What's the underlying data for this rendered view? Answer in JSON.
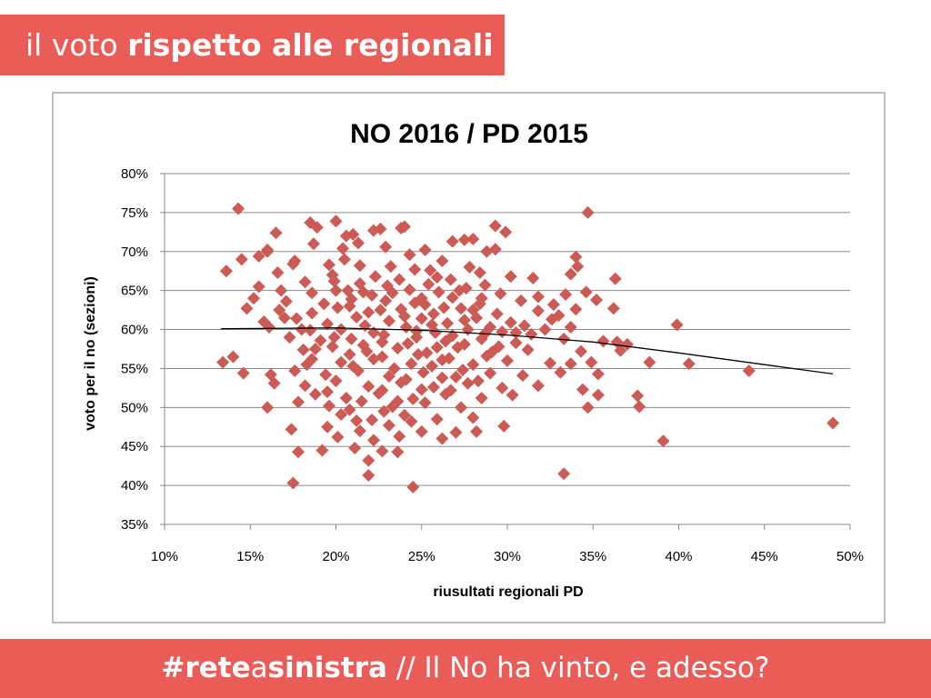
{
  "header": {
    "title_light": "il voto ",
    "title_bold": "rispetto alle regionali"
  },
  "footer": {
    "hashtag_part1": "#rete",
    "hashtag_part2": "a",
    "hashtag_part3": "sinistra",
    "tagline": " // Il No ha vinto, e adesso?"
  },
  "colors": {
    "accent": "#ea5c57",
    "marker": "#cc5a55",
    "trend": "#000000",
    "grid": "#8a8a8a"
  },
  "chart_data": {
    "type": "scatter",
    "title": "NO 2016 / PD 2015",
    "xlabel": "riusultati regionali PD",
    "ylabel": "voto per il no (sezioni)",
    "xlim": [
      0.1,
      0.5
    ],
    "ylim": [
      0.35,
      0.8
    ],
    "x_ticks": [
      0.1,
      0.15,
      0.2,
      0.25,
      0.3,
      0.35,
      0.4,
      0.45,
      0.5
    ],
    "x_tick_labels": [
      "10%",
      "15%",
      "20%",
      "25%",
      "30%",
      "35%",
      "40%",
      "45%",
      "50%"
    ],
    "y_ticks": [
      0.35,
      0.4,
      0.45,
      0.5,
      0.55,
      0.6,
      0.65,
      0.7,
      0.75,
      0.8
    ],
    "y_tick_labels": [
      "35%",
      "40%",
      "45%",
      "50%",
      "55%",
      "60%",
      "65%",
      "70%",
      "75%",
      "80%"
    ],
    "grid": "horizontal",
    "marker": "diamond",
    "trendline": {
      "type": "polynomial",
      "x": [
        0.133,
        0.2,
        0.25,
        0.3,
        0.35,
        0.4,
        0.45,
        0.49
      ],
      "y": [
        0.601,
        0.602,
        0.599,
        0.593,
        0.584,
        0.57,
        0.555,
        0.543
      ]
    },
    "points": [
      [
        0.143,
        0.755
      ],
      [
        0.347,
        0.75
      ],
      [
        0.185,
        0.737
      ],
      [
        0.2,
        0.739
      ],
      [
        0.189,
        0.731
      ],
      [
        0.222,
        0.727
      ],
      [
        0.226,
        0.729
      ],
      [
        0.238,
        0.73
      ],
      [
        0.24,
        0.732
      ],
      [
        0.293,
        0.733
      ],
      [
        0.299,
        0.725
      ],
      [
        0.165,
        0.724
      ],
      [
        0.21,
        0.722
      ],
      [
        0.275,
        0.715
      ],
      [
        0.268,
        0.713
      ],
      [
        0.28,
        0.716
      ],
      [
        0.229,
        0.706
      ],
      [
        0.252,
        0.702
      ],
      [
        0.293,
        0.703
      ],
      [
        0.187,
        0.71
      ],
      [
        0.204,
        0.704
      ],
      [
        0.213,
        0.711
      ],
      [
        0.145,
        0.69
      ],
      [
        0.16,
        0.7
      ],
      [
        0.155,
        0.694
      ],
      [
        0.176,
        0.688
      ],
      [
        0.205,
        0.69
      ],
      [
        0.243,
        0.696
      ],
      [
        0.262,
        0.688
      ],
      [
        0.288,
        0.7
      ],
      [
        0.34,
        0.693
      ],
      [
        0.136,
        0.675
      ],
      [
        0.166,
        0.673
      ],
      [
        0.175,
        0.684
      ],
      [
        0.196,
        0.683
      ],
      [
        0.214,
        0.682
      ],
      [
        0.232,
        0.681
      ],
      [
        0.255,
        0.676
      ],
      [
        0.278,
        0.68
      ],
      [
        0.341,
        0.681
      ],
      [
        0.337,
        0.671
      ],
      [
        0.363,
        0.665
      ],
      [
        0.302,
        0.668
      ],
      [
        0.315,
        0.666
      ],
      [
        0.182,
        0.661
      ],
      [
        0.199,
        0.662
      ],
      [
        0.214,
        0.659
      ],
      [
        0.237,
        0.664
      ],
      [
        0.254,
        0.658
      ],
      [
        0.267,
        0.664
      ],
      [
        0.287,
        0.657
      ],
      [
        0.168,
        0.65
      ],
      [
        0.186,
        0.647
      ],
      [
        0.207,
        0.65
      ],
      [
        0.221,
        0.644
      ],
      [
        0.243,
        0.651
      ],
      [
        0.26,
        0.648
      ],
      [
        0.276,
        0.653
      ],
      [
        0.296,
        0.646
      ],
      [
        0.318,
        0.642
      ],
      [
        0.334,
        0.645
      ],
      [
        0.346,
        0.648
      ],
      [
        0.152,
        0.64
      ],
      [
        0.171,
        0.636
      ],
      [
        0.193,
        0.633
      ],
      [
        0.209,
        0.639
      ],
      [
        0.229,
        0.637
      ],
      [
        0.246,
        0.634
      ],
      [
        0.268,
        0.641
      ],
      [
        0.284,
        0.633
      ],
      [
        0.308,
        0.637
      ],
      [
        0.327,
        0.632
      ],
      [
        0.352,
        0.638
      ],
      [
        0.148,
        0.627
      ],
      [
        0.167,
        0.625
      ],
      [
        0.186,
        0.621
      ],
      [
        0.201,
        0.628
      ],
      [
        0.219,
        0.622
      ],
      [
        0.238,
        0.626
      ],
      [
        0.257,
        0.62
      ],
      [
        0.273,
        0.627
      ],
      [
        0.294,
        0.62
      ],
      [
        0.318,
        0.624
      ],
      [
        0.34,
        0.626
      ],
      [
        0.362,
        0.627
      ],
      [
        0.158,
        0.61
      ],
      [
        0.177,
        0.614
      ],
      [
        0.195,
        0.607
      ],
      [
        0.212,
        0.616
      ],
      [
        0.231,
        0.611
      ],
      [
        0.25,
        0.614
      ],
      [
        0.265,
        0.608
      ],
      [
        0.282,
        0.615
      ],
      [
        0.302,
        0.609
      ],
      [
        0.326,
        0.613
      ],
      [
        0.337,
        0.603
      ],
      [
        0.399,
        0.606
      ],
      [
        0.161,
        0.603
      ],
      [
        0.185,
        0.599
      ],
      [
        0.203,
        0.6
      ],
      [
        0.222,
        0.596
      ],
      [
        0.241,
        0.603
      ],
      [
        0.258,
        0.596
      ],
      [
        0.277,
        0.6
      ],
      [
        0.297,
        0.597
      ],
      [
        0.314,
        0.594
      ],
      [
        0.173,
        0.59
      ],
      [
        0.191,
        0.586
      ],
      [
        0.209,
        0.588
      ],
      [
        0.227,
        0.584
      ],
      [
        0.247,
        0.59
      ],
      [
        0.264,
        0.585
      ],
      [
        0.285,
        0.588
      ],
      [
        0.305,
        0.583
      ],
      [
        0.333,
        0.588
      ],
      [
        0.356,
        0.585
      ],
      [
        0.364,
        0.584
      ],
      [
        0.37,
        0.581
      ],
      [
        0.181,
        0.574
      ],
      [
        0.198,
        0.578
      ],
      [
        0.218,
        0.572
      ],
      [
        0.236,
        0.576
      ],
      [
        0.253,
        0.57
      ],
      [
        0.271,
        0.577
      ],
      [
        0.291,
        0.571
      ],
      [
        0.312,
        0.574
      ],
      [
        0.343,
        0.572
      ],
      [
        0.366,
        0.573
      ],
      [
        0.134,
        0.558
      ],
      [
        0.14,
        0.565
      ],
      [
        0.186,
        0.562
      ],
      [
        0.203,
        0.558
      ],
      [
        0.222,
        0.562
      ],
      [
        0.244,
        0.556
      ],
      [
        0.262,
        0.561
      ],
      [
        0.28,
        0.555
      ],
      [
        0.3,
        0.56
      ],
      [
        0.325,
        0.557
      ],
      [
        0.337,
        0.556
      ],
      [
        0.349,
        0.558
      ],
      [
        0.383,
        0.558
      ],
      [
        0.406,
        0.556
      ],
      [
        0.146,
        0.544
      ],
      [
        0.176,
        0.547
      ],
      [
        0.194,
        0.542
      ],
      [
        0.213,
        0.547
      ],
      [
        0.231,
        0.54
      ],
      [
        0.251,
        0.545
      ],
      [
        0.27,
        0.539
      ],
      [
        0.29,
        0.544
      ],
      [
        0.309,
        0.541
      ],
      [
        0.331,
        0.545
      ],
      [
        0.353,
        0.543
      ],
      [
        0.441,
        0.547
      ],
      [
        0.164,
        0.531
      ],
      [
        0.182,
        0.528
      ],
      [
        0.2,
        0.534
      ],
      [
        0.219,
        0.527
      ],
      [
        0.238,
        0.532
      ],
      [
        0.257,
        0.526
      ],
      [
        0.277,
        0.531
      ],
      [
        0.297,
        0.525
      ],
      [
        0.318,
        0.528
      ],
      [
        0.344,
        0.523
      ],
      [
        0.353,
        0.516
      ],
      [
        0.188,
        0.517
      ],
      [
        0.206,
        0.512
      ],
      [
        0.225,
        0.518
      ],
      [
        0.245,
        0.511
      ],
      [
        0.264,
        0.517
      ],
      [
        0.285,
        0.512
      ],
      [
        0.303,
        0.516
      ],
      [
        0.376,
        0.515
      ],
      [
        0.16,
        0.5
      ],
      [
        0.178,
        0.507
      ],
      [
        0.196,
        0.502
      ],
      [
        0.215,
        0.508
      ],
      [
        0.233,
        0.501
      ],
      [
        0.252,
        0.506
      ],
      [
        0.273,
        0.5
      ],
      [
        0.347,
        0.5
      ],
      [
        0.377,
        0.501
      ],
      [
        0.203,
        0.491
      ],
      [
        0.221,
        0.484
      ],
      [
        0.24,
        0.49
      ],
      [
        0.259,
        0.485
      ],
      [
        0.28,
        0.487
      ],
      [
        0.195,
        0.475
      ],
      [
        0.214,
        0.47
      ],
      [
        0.231,
        0.477
      ],
      [
        0.25,
        0.469
      ],
      [
        0.27,
        0.468
      ],
      [
        0.282,
        0.469
      ],
      [
        0.298,
        0.476
      ],
      [
        0.49,
        0.48
      ],
      [
        0.201,
        0.462
      ],
      [
        0.222,
        0.458
      ],
      [
        0.237,
        0.463
      ],
      [
        0.262,
        0.46
      ],
      [
        0.174,
        0.472
      ],
      [
        0.192,
        0.445
      ],
      [
        0.211,
        0.448
      ],
      [
        0.227,
        0.444
      ],
      [
        0.236,
        0.443
      ],
      [
        0.178,
        0.443
      ],
      [
        0.391,
        0.457
      ],
      [
        0.219,
        0.432
      ],
      [
        0.219,
        0.413
      ],
      [
        0.175,
        0.403
      ],
      [
        0.245,
        0.398
      ],
      [
        0.333,
        0.415
      ],
      [
        0.16,
        0.702
      ],
      [
        0.206,
        0.72
      ],
      [
        0.246,
        0.677
      ],
      [
        0.259,
        0.667
      ],
      [
        0.223,
        0.668
      ],
      [
        0.23,
        0.656
      ],
      [
        0.272,
        0.65
      ],
      [
        0.284,
        0.673
      ],
      [
        0.208,
        0.63
      ],
      [
        0.226,
        0.625
      ],
      [
        0.252,
        0.632
      ],
      [
        0.263,
        0.628
      ],
      [
        0.28,
        0.625
      ],
      [
        0.217,
        0.605
      ],
      [
        0.24,
        0.617
      ],
      [
        0.256,
        0.606
      ],
      [
        0.275,
        0.612
      ],
      [
        0.29,
        0.603
      ],
      [
        0.228,
        0.593
      ],
      [
        0.247,
        0.598
      ],
      [
        0.268,
        0.592
      ],
      [
        0.287,
        0.595
      ],
      [
        0.305,
        0.596
      ],
      [
        0.216,
        0.58
      ],
      [
        0.242,
        0.582
      ],
      [
        0.259,
        0.577
      ],
      [
        0.275,
        0.581
      ],
      [
        0.295,
        0.578
      ],
      [
        0.208,
        0.568
      ],
      [
        0.227,
        0.565
      ],
      [
        0.248,
        0.568
      ],
      [
        0.266,
        0.563
      ],
      [
        0.288,
        0.566
      ],
      [
        0.21,
        0.553
      ],
      [
        0.234,
        0.55
      ],
      [
        0.256,
        0.553
      ],
      [
        0.274,
        0.548
      ],
      [
        0.241,
        0.536
      ],
      [
        0.262,
        0.538
      ],
      [
        0.283,
        0.534
      ],
      [
        0.227,
        0.522
      ],
      [
        0.25,
        0.523
      ],
      [
        0.267,
        0.522
      ],
      [
        0.236,
        0.508
      ],
      [
        0.208,
        0.497
      ],
      [
        0.228,
        0.495
      ],
      [
        0.244,
        0.482
      ],
      [
        0.212,
        0.483
      ],
      [
        0.195,
        0.52
      ],
      [
        0.2,
        0.65
      ],
      [
        0.216,
        0.648
      ],
      [
        0.233,
        0.647
      ],
      [
        0.198,
        0.67
      ],
      [
        0.25,
        0.64
      ],
      [
        0.285,
        0.64
      ],
      [
        0.322,
        0.6
      ],
      [
        0.31,
        0.605
      ],
      [
        0.33,
        0.618
      ],
      [
        0.18,
        0.6
      ],
      [
        0.17,
        0.615
      ],
      [
        0.155,
        0.655
      ],
      [
        0.162,
        0.542
      ],
      [
        0.183,
        0.555
      ],
      [
        0.199,
        0.59
      ],
      [
        0.188,
        0.575
      ]
    ]
  }
}
